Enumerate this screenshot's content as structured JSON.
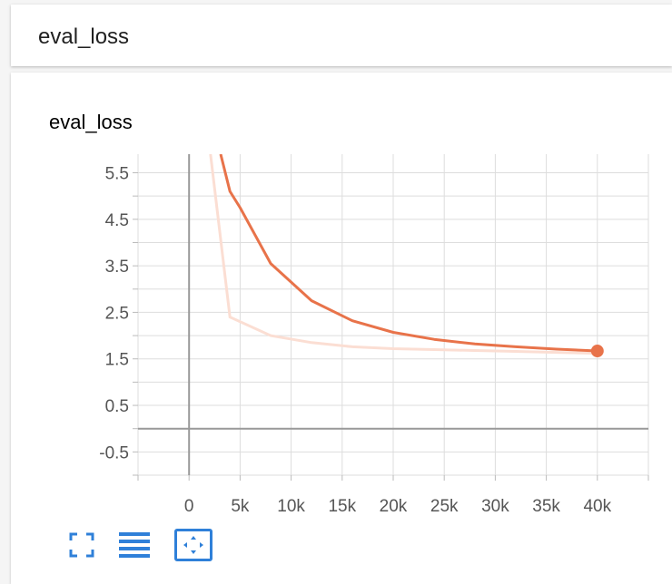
{
  "header": {
    "title": "eval_loss"
  },
  "chart": {
    "title": "eval_loss"
  },
  "toolbar": {
    "buttons": [
      {
        "icon": "fullscreen-icon"
      },
      {
        "icon": "data-table-icon"
      },
      {
        "icon": "fit-domain-icon",
        "active": true
      }
    ]
  },
  "colors": {
    "series": "#e8734a",
    "raw_series": "#fbded3",
    "grid": "#dddddd",
    "axis": "#999999",
    "accent": "#2f80d9"
  },
  "chart_data": {
    "type": "line",
    "title": "eval_loss",
    "xlabel": "",
    "ylabel": "",
    "xlim": [
      -5000,
      45000
    ],
    "ylim": [
      -1,
      5.9
    ],
    "x_ticks": [
      0,
      5000,
      10000,
      15000,
      20000,
      25000,
      30000,
      35000,
      40000
    ],
    "x_tick_labels": [
      "0",
      "5k",
      "10k",
      "15k",
      "20k",
      "25k",
      "30k",
      "35k",
      "40k"
    ],
    "y_ticks": [
      -0.5,
      0.5,
      1.5,
      2.5,
      3.5,
      4.5,
      5.5
    ],
    "y_tick_labels": [
      "-0.5",
      "0.5",
      "1.5",
      "2.5",
      "3.5",
      "4.5",
      "5.5"
    ],
    "grid": true,
    "series": [
      {
        "kind": "smoothed",
        "x": [
          3100,
          4000,
          5000,
          8000,
          12000,
          16000,
          20000,
          24000,
          28000,
          32000,
          36000,
          40000
        ],
        "y": [
          5.9,
          5.1,
          4.75,
          3.55,
          2.75,
          2.32,
          2.07,
          1.92,
          1.82,
          1.76,
          1.71,
          1.67
        ]
      },
      {
        "kind": "raw",
        "x": [
          2100,
          4000,
          8000,
          12000,
          16000,
          20000,
          24000,
          28000,
          32000,
          36000,
          40000
        ],
        "y": [
          5.9,
          2.4,
          2.0,
          1.85,
          1.76,
          1.72,
          1.7,
          1.68,
          1.66,
          1.64,
          1.62
        ]
      }
    ]
  }
}
